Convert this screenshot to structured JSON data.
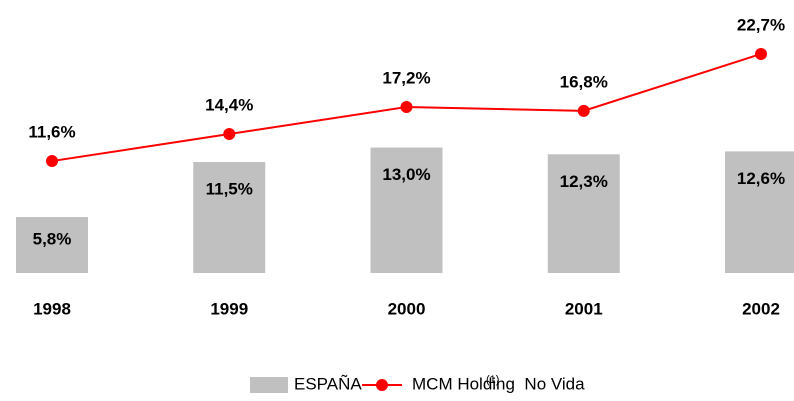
{
  "chart_data": {
    "type": "bar_line",
    "categories": [
      "1998",
      "1999",
      "2000",
      "2001",
      "2002"
    ],
    "series": [
      {
        "name": "ESPAÑA",
        "type": "bar",
        "color": "#c0c0c0",
        "values": [
          5.8,
          11.5,
          13.0,
          12.3,
          12.6
        ],
        "value_labels": [
          "5,8%",
          "11,5%",
          "13,0%",
          "12,3%",
          "12,6%"
        ]
      },
      {
        "name": "MCM Holding  No Vida",
        "type": "line",
        "color": "#ff0000",
        "values": [
          11.6,
          14.4,
          17.2,
          16.8,
          22.7
        ],
        "value_labels": [
          "11,6%",
          "14,4%",
          "17,2%",
          "16,8%",
          "22,7%"
        ]
      }
    ],
    "legend_note": "(1)",
    "legend": "bottom"
  }
}
